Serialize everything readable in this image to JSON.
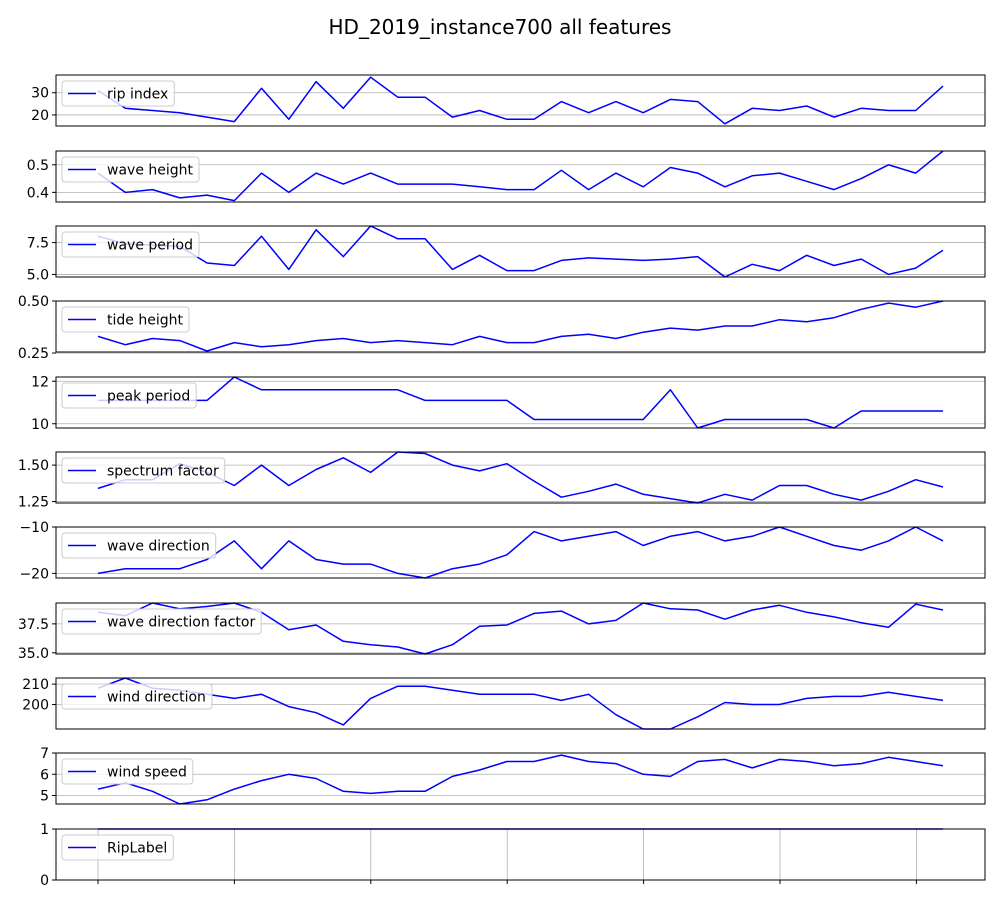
{
  "title": "HD_2019_instance700 all features",
  "line_color": "#0000ff",
  "chart_data": [
    {
      "type": "line",
      "series": [
        {
          "name": "rip index",
          "values": [
            31,
            23,
            22,
            21,
            19,
            17,
            32,
            18,
            35,
            23,
            37,
            28,
            28,
            19,
            22,
            18,
            18,
            26,
            21,
            26,
            21,
            27,
            26,
            16,
            23,
            22,
            24,
            19,
            23,
            22,
            22,
            33
          ]
        }
      ],
      "ylim": [
        15,
        38
      ],
      "yticks": [
        20,
        30
      ],
      "ytick_labels": [
        "20",
        "30"
      ]
    },
    {
      "type": "line",
      "series": [
        {
          "name": "wave height",
          "values": [
            0.47,
            0.4,
            0.41,
            0.38,
            0.39,
            0.37,
            0.47,
            0.4,
            0.47,
            0.43,
            0.47,
            0.43,
            0.43,
            0.43,
            0.42,
            0.41,
            0.41,
            0.48,
            0.41,
            0.47,
            0.42,
            0.49,
            0.47,
            0.42,
            0.46,
            0.47,
            0.44,
            0.41,
            0.45,
            0.5,
            0.47,
            0.55
          ]
        }
      ],
      "ylim": [
        0.365,
        0.55
      ],
      "yticks": [
        0.4,
        0.5
      ],
      "ytick_labels": [
        "0.4",
        "0.5"
      ]
    },
    {
      "type": "line",
      "series": [
        {
          "name": "wave period",
          "values": [
            8.0,
            7.4,
            7.3,
            7.2,
            5.9,
            5.7,
            8.0,
            5.4,
            8.5,
            6.4,
            8.8,
            7.8,
            7.8,
            5.4,
            6.5,
            5.3,
            5.3,
            6.1,
            6.3,
            6.2,
            6.1,
            6.2,
            6.4,
            4.8,
            5.8,
            5.3,
            6.5,
            5.7,
            6.2,
            5.0,
            5.5,
            6.9
          ]
        }
      ],
      "ylim": [
        4.8,
        8.8
      ],
      "yticks": [
        5.0,
        7.5
      ],
      "ytick_labels": [
        "5.0",
        "7.5"
      ]
    },
    {
      "type": "line",
      "series": [
        {
          "name": "tide height",
          "values": [
            0.33,
            0.29,
            0.32,
            0.31,
            0.26,
            0.3,
            0.28,
            0.29,
            0.31,
            0.32,
            0.3,
            0.31,
            0.3,
            0.29,
            0.33,
            0.3,
            0.3,
            0.33,
            0.34,
            0.32,
            0.35,
            0.37,
            0.36,
            0.38,
            0.38,
            0.41,
            0.4,
            0.42,
            0.46,
            0.49,
            0.47,
            0.5
          ]
        }
      ],
      "ylim": [
        0.255,
        0.5
      ],
      "yticks": [
        0.25,
        0.5
      ],
      "ytick_labels": [
        "0.25",
        "0.50"
      ]
    },
    {
      "type": "line",
      "series": [
        {
          "name": "peak period",
          "values": [
            11.1,
            11.1,
            11.1,
            11.1,
            11.1,
            12.2,
            11.6,
            11.6,
            11.6,
            11.6,
            11.6,
            11.6,
            11.1,
            11.1,
            11.1,
            11.1,
            10.2,
            10.2,
            10.2,
            10.2,
            10.2,
            11.6,
            9.8,
            10.2,
            10.2,
            10.2,
            10.2,
            9.8,
            10.6,
            10.6,
            10.6,
            10.6
          ]
        }
      ],
      "ylim": [
        9.8,
        12.2
      ],
      "yticks": [
        10,
        12
      ],
      "ytick_labels": [
        "10",
        "12"
      ]
    },
    {
      "type": "line",
      "series": [
        {
          "name": "spectrum factor",
          "values": [
            1.34,
            1.4,
            1.4,
            1.51,
            1.45,
            1.36,
            1.5,
            1.36,
            1.47,
            1.55,
            1.45,
            1.59,
            1.58,
            1.5,
            1.46,
            1.51,
            1.39,
            1.28,
            1.32,
            1.37,
            1.3,
            1.27,
            1.24,
            1.3,
            1.26,
            1.36,
            1.36,
            1.3,
            1.26,
            1.32,
            1.4,
            1.35
          ]
        }
      ],
      "ylim": [
        1.24,
        1.59
      ],
      "yticks": [
        1.25,
        1.5
      ],
      "ytick_labels": [
        "1.25",
        "1.50"
      ]
    },
    {
      "type": "line",
      "series": [
        {
          "name": "wave direction",
          "values": [
            -20,
            -19,
            -19,
            -19,
            -17,
            -13,
            -19,
            -13,
            -17,
            -18,
            -18,
            -20,
            -21,
            -19,
            -18,
            -16,
            -11,
            -13,
            -12,
            -11,
            -14,
            -12,
            -11,
            -13,
            -12,
            -10,
            -12,
            -14,
            -15,
            -13,
            -10,
            -13
          ]
        }
      ],
      "ylim": [
        -21,
        -10
      ],
      "yticks": [
        -20,
        -10
      ],
      "ytick_labels": [
        "−20",
        "−10"
      ]
    },
    {
      "type": "line",
      "series": [
        {
          "name": "wave direction factor",
          "values": [
            38.5,
            38.2,
            39.3,
            38.8,
            39.0,
            39.3,
            38.5,
            37.0,
            37.4,
            36.0,
            35.7,
            35.5,
            34.9,
            35.7,
            37.3,
            37.4,
            38.4,
            38.6,
            37.5,
            37.8,
            39.3,
            38.8,
            38.7,
            37.9,
            38.7,
            39.1,
            38.5,
            38.1,
            37.6,
            37.2,
            39.2,
            38.7
          ]
        }
      ],
      "ylim": [
        34.9,
        39.3
      ],
      "yticks": [
        35.0,
        37.5
      ],
      "ytick_labels": [
        "35.0",
        "37.5"
      ]
    },
    {
      "type": "line",
      "series": [
        {
          "name": "wind direction",
          "values": [
            208,
            213,
            208,
            207,
            205,
            203,
            205,
            199,
            196,
            190,
            203,
            209,
            209,
            207,
            205,
            205,
            205,
            202,
            205,
            195,
            188,
            188,
            194,
            201,
            200,
            200,
            203,
            204,
            204,
            206,
            204,
            202
          ]
        }
      ],
      "ylim": [
        188,
        213
      ],
      "yticks": [
        200,
        210
      ],
      "ytick_labels": [
        "200",
        "210"
      ]
    },
    {
      "type": "line",
      "series": [
        {
          "name": "wind speed",
          "values": [
            5.3,
            5.6,
            5.2,
            4.6,
            4.8,
            5.3,
            5.7,
            6.0,
            5.8,
            5.2,
            5.1,
            5.2,
            5.2,
            5.9,
            6.2,
            6.6,
            6.6,
            6.9,
            6.6,
            6.5,
            6.0,
            5.9,
            6.6,
            6.7,
            6.3,
            6.7,
            6.6,
            6.4,
            6.5,
            6.8,
            6.6,
            6.4
          ]
        }
      ],
      "ylim": [
        4.6,
        7.0
      ],
      "yticks": [
        5,
        6,
        7
      ],
      "ytick_labels": [
        "5",
        "6",
        "7"
      ]
    },
    {
      "type": "line",
      "series": [
        {
          "name": "RipLabel",
          "values": [
            1,
            1,
            1,
            1,
            1,
            1,
            1,
            1,
            1,
            1,
            1,
            1,
            1,
            1,
            1,
            1,
            1,
            1,
            1,
            1,
            1,
            1,
            1,
            1,
            1,
            1,
            1,
            1,
            1,
            1,
            1,
            1
          ]
        }
      ],
      "ylim": [
        0,
        1
      ],
      "yticks": [
        0,
        1
      ],
      "ytick_labels": [
        "0",
        "1"
      ],
      "xgrid": true
    }
  ]
}
